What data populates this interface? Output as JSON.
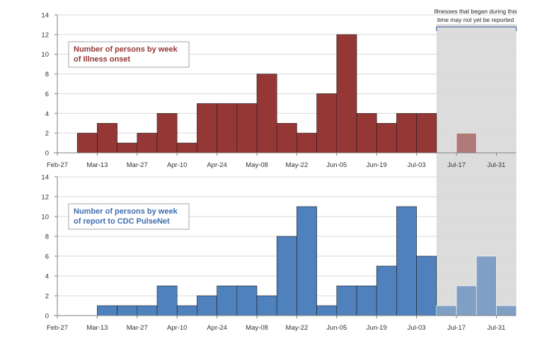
{
  "chart_data": [
    {
      "type": "bar",
      "legend": [
        "Number of persons by week",
        "of  Illness onset"
      ],
      "legend_position": "top-left",
      "color": "#953735",
      "late_color": "#b07a79",
      "ylim": [
        0,
        14
      ],
      "yticks": [
        0,
        2,
        4,
        6,
        8,
        10,
        12,
        14
      ],
      "grid": true,
      "x_tick_labels": [
        "Feb-27",
        "Mar-13",
        "Mar-27",
        "Apr-10",
        "Apr-24",
        "May-08",
        "May-22",
        "Jun-05",
        "Jun-19",
        "Jul-03",
        "Jul-17",
        "Jul-31"
      ],
      "values": [
        0,
        2,
        3,
        1,
        2,
        4,
        1,
        5,
        5,
        5,
        8,
        3,
        2,
        6,
        12,
        4,
        3,
        4,
        4,
        0,
        2,
        0,
        0
      ],
      "shaded_from_week": 19
    },
    {
      "type": "bar",
      "legend": [
        "Number of persons by week",
        "of report to CDC PulseNet"
      ],
      "legend_position": "top-left",
      "color": "#4f81bd",
      "late_color": "#7f9fc4",
      "ylim": [
        0,
        14
      ],
      "yticks": [
        0,
        2,
        4,
        6,
        8,
        10,
        12,
        14
      ],
      "grid": true,
      "x_tick_labels": [
        "Feb-27",
        "Mar-13",
        "Mar-27",
        "Apr-10",
        "Apr-24",
        "May-08",
        "May-22",
        "Jun-05",
        "Jun-19",
        "Jul-03",
        "Jul-17",
        "Jul-31"
      ],
      "values": [
        0,
        0,
        1,
        1,
        1,
        3,
        1,
        2,
        3,
        3,
        2,
        8,
        11,
        1,
        3,
        3,
        5,
        11,
        6,
        1,
        3,
        6,
        1
      ],
      "shaded_from_week": 19
    }
  ],
  "annotation": {
    "lines": [
      "Illnesses that began during this",
      "time may not yet be reported"
    ]
  },
  "colors": {
    "grid": "#d9d9d9",
    "shade": "#dcdcdc",
    "axis": "#7f7f7f",
    "bracket": "#4f6fa8"
  }
}
